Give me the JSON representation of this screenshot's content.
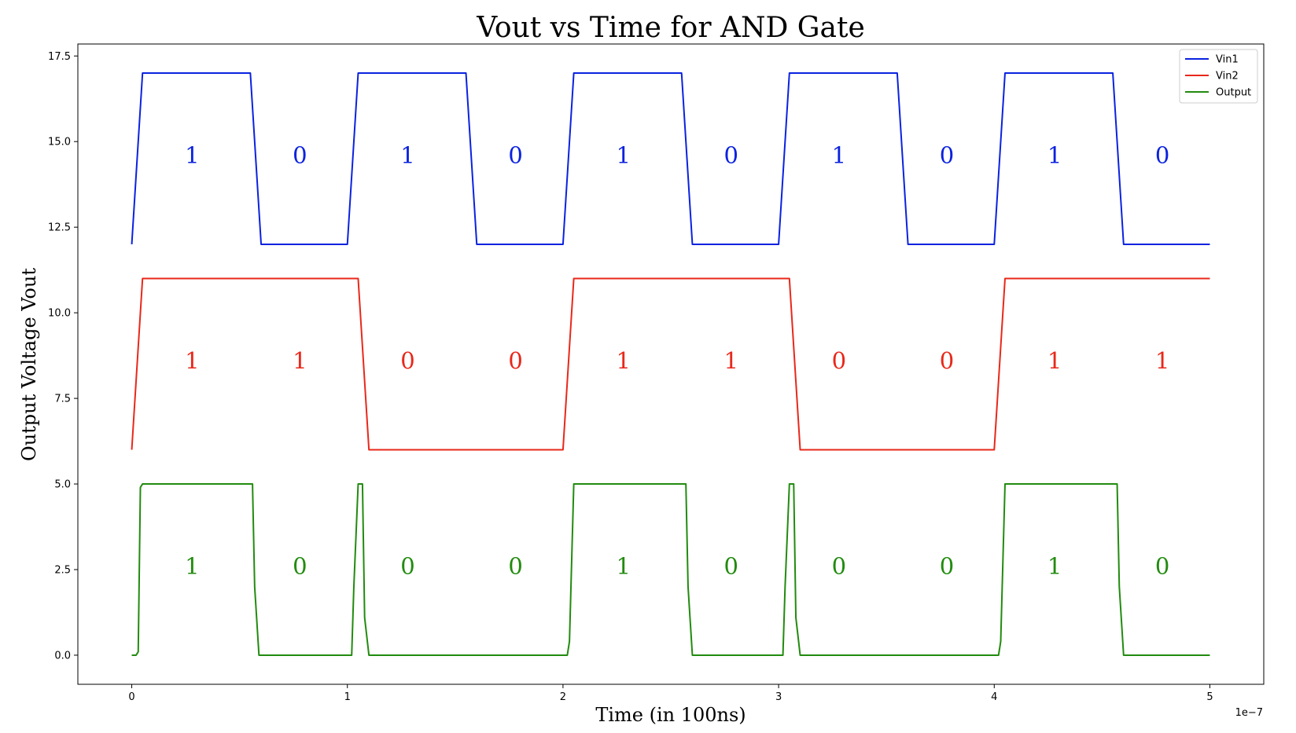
{
  "chart_data": {
    "type": "line",
    "title": "Vout vs Time for AND Gate",
    "xlabel": "Time (in 100ns)",
    "ylabel": "Output Voltage Vout",
    "x_offset_label": "1e−7",
    "xlim": [
      -0.25,
      5.25
    ],
    "ylim": [
      -0.85,
      17.85
    ],
    "xticks": [
      0,
      1,
      2,
      3,
      4,
      5
    ],
    "xtick_labels": [
      "0",
      "1",
      "2",
      "3",
      "4",
      "5"
    ],
    "yticks": [
      0,
      2.5,
      5,
      7.5,
      10,
      12.5,
      15,
      17.5
    ],
    "ytick_labels": [
      "0.0",
      "2.5",
      "5.0",
      "7.5",
      "10.0",
      "12.5",
      "15.0",
      "17.5"
    ],
    "grid": false,
    "legend_position": "top-right",
    "series": [
      {
        "name": "Vin1",
        "color": "#0a22e0",
        "x": [
          0,
          0.05,
          0.55,
          0.6,
          1.0,
          1.05,
          1.55,
          1.6,
          2.0,
          2.05,
          2.55,
          2.6,
          3.0,
          3.05,
          3.55,
          3.6,
          4.0,
          4.05,
          4.55,
          4.6,
          5.0
        ],
        "y": [
          12,
          17,
          17,
          12,
          12,
          17,
          17,
          12,
          12,
          17,
          17,
          12,
          12,
          17,
          17,
          12,
          12,
          17,
          17,
          12,
          12
        ]
      },
      {
        "name": "Vin2",
        "color": "#e8281a",
        "x": [
          0,
          0.05,
          1.05,
          1.1,
          2.0,
          2.05,
          3.05,
          3.1,
          4.0,
          4.05,
          5.0
        ],
        "y": [
          6,
          11,
          11,
          6,
          6,
          11,
          11,
          6,
          6,
          11,
          11
        ]
      },
      {
        "name": "Output",
        "color": "#228b0f",
        "x": [
          0,
          0.02,
          0.03,
          0.04,
          0.05,
          0.56,
          0.57,
          0.59,
          1.02,
          1.03,
          1.05,
          1.07,
          1.08,
          1.1,
          2.02,
          2.03,
          2.05,
          2.57,
          2.58,
          2.6,
          3.02,
          3.03,
          3.05,
          3.07,
          3.08,
          3.1,
          4.02,
          4.03,
          4.05,
          4.57,
          4.58,
          4.6,
          5.0
        ],
        "y": [
          0,
          0,
          0.1,
          4.9,
          5,
          5,
          2,
          0,
          0,
          2,
          5,
          5,
          1.1,
          0,
          0,
          0.4,
          5,
          5,
          2,
          0,
          0,
          2,
          5,
          5,
          1.1,
          0,
          0,
          0.4,
          5,
          5,
          2,
          0,
          0
        ]
      }
    ],
    "annotations": [
      {
        "series": "Vin1",
        "y": 14.6,
        "bits": [
          "1",
          "0",
          "1",
          "0",
          "1",
          "0",
          "1",
          "0",
          "1",
          "0"
        ]
      },
      {
        "series": "Vin2",
        "y": 8.6,
        "bits": [
          "1",
          "1",
          "0",
          "0",
          "1",
          "1",
          "0",
          "0",
          "1",
          "1"
        ]
      },
      {
        "series": "Output",
        "y": 2.6,
        "bits": [
          "1",
          "0",
          "0",
          "0",
          "1",
          "0",
          "0",
          "0",
          "1",
          "0"
        ]
      }
    ],
    "annotation_x": [
      0.28,
      0.78,
      1.28,
      1.78,
      2.28,
      2.78,
      3.28,
      3.78,
      4.28,
      4.78
    ]
  }
}
